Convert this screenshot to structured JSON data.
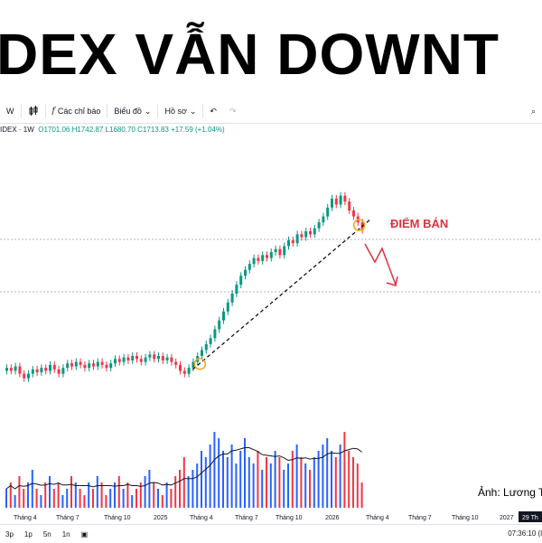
{
  "headline": "DEX VẪN DOWNT",
  "toolbar": {
    "interval": "W",
    "indicators_label": "Các chỉ báo",
    "chart_label": "Biểu đồ",
    "profile_label": "Hồ sơ"
  },
  "legend": {
    "symbol": "IDEX · 1W",
    "o": "O1701.06",
    "h": "H1742.87",
    "l": "L1680.70",
    "c": "C1713.83",
    "change": "+17.59 (+1.04%)"
  },
  "annotation": "ĐIỂM BÁN",
  "watermark": "Ảnh: Lương T",
  "xaxis": {
    "labels": [
      "Tháng 4",
      "Tháng 7",
      "Tháng 10",
      "2025",
      "Tháng 4",
      "Tháng 7",
      "Tháng 10",
      "2026",
      "Tháng 4",
      "Tháng 7",
      "Tháng 10",
      "2027"
    ],
    "current_label": "29 Th"
  },
  "bottombar": {
    "ranges": [
      "3p",
      "1p",
      "5n",
      "1n"
    ],
    "time": "07:36:10 (l"
  },
  "colors": {
    "up": "#089981",
    "down": "#f23645",
    "vol_up": "#2962ff",
    "vol_down": "#f23645",
    "annot": "#e0323c"
  },
  "chart_data": {
    "type": "candlestick",
    "series_closes": [
      1250,
      1240,
      1255,
      1230,
      1215,
      1230,
      1245,
      1235,
      1250,
      1240,
      1260,
      1245,
      1230,
      1250,
      1265,
      1255,
      1270,
      1260,
      1250,
      1265,
      1255,
      1270,
      1260,
      1250,
      1265,
      1280,
      1270,
      1285,
      1275,
      1290,
      1280,
      1270,
      1285,
      1295,
      1280,
      1290,
      1275,
      1285,
      1270,
      1260,
      1240,
      1230,
      1250,
      1270,
      1290,
      1310,
      1330,
      1350,
      1380,
      1410,
      1440,
      1470,
      1500,
      1530,
      1560,
      1580,
      1600,
      1620,
      1610,
      1630,
      1620,
      1640,
      1650,
      1630,
      1660,
      1680,
      1670,
      1700,
      1690,
      1710,
      1700,
      1720,
      1740,
      1760,
      1790,
      1820,
      1800,
      1830,
      1810,
      1780,
      1760,
      1740,
      1714
    ],
    "volumes": [
      3,
      4,
      2,
      5,
      3,
      4,
      6,
      3,
      2,
      4,
      5,
      3,
      4,
      2,
      3,
      5,
      4,
      3,
      2,
      4,
      3,
      5,
      4,
      2,
      3,
      4,
      5,
      3,
      4,
      2,
      3,
      4,
      5,
      6,
      4,
      3,
      2,
      4,
      3,
      5,
      6,
      8,
      5,
      6,
      7,
      9,
      8,
      10,
      12,
      11,
      9,
      8,
      10,
      7,
      9,
      11,
      8,
      7,
      9,
      6,
      8,
      7,
      9,
      8,
      6,
      7,
      9,
      10,
      8,
      7,
      6,
      8,
      9,
      10,
      11,
      9,
      8,
      10,
      12,
      9,
      8,
      7,
      4
    ],
    "trendline_from_index": 43,
    "trendline_to_index": 82
  }
}
